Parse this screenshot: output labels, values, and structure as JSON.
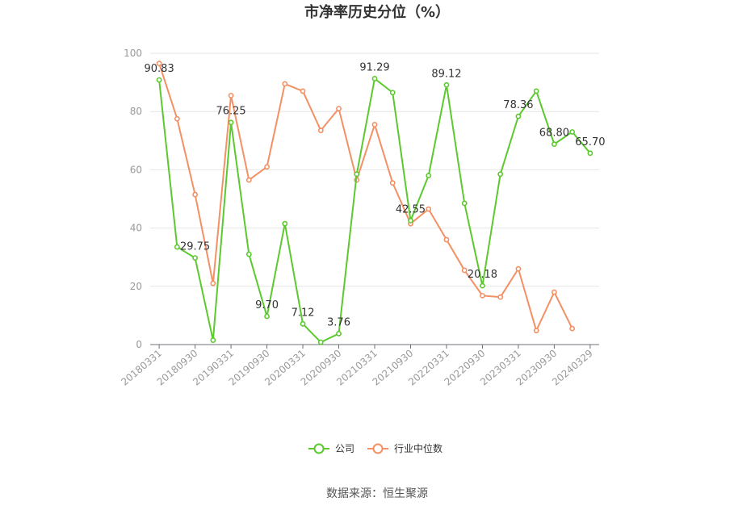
{
  "chart_data": {
    "type": "line",
    "title": "市净率历史分位（%）",
    "source": "数据来源：恒生聚源",
    "ylim": [
      0,
      100
    ],
    "yticks": [
      0,
      20,
      40,
      60,
      80,
      100
    ],
    "grid": true,
    "legend_position": "bottom-center",
    "x": [
      "20180331",
      "20180630",
      "20180930",
      "20181231",
      "20190331",
      "20190630",
      "20190930",
      "20191231",
      "20200331",
      "20200630",
      "20200930",
      "20201231",
      "20210331",
      "20210630",
      "20210930",
      "20211231",
      "20220331",
      "20220630",
      "20220930",
      "20221231",
      "20230331",
      "20230630",
      "20230930",
      "20231231",
      "20240329"
    ],
    "x_tick_labels": [
      "20180331",
      "20180930",
      "20190331",
      "20190930",
      "20200331",
      "20200930",
      "20210331",
      "20210930",
      "20220331",
      "20220930",
      "20230331",
      "20230930",
      "20240329"
    ],
    "series": [
      {
        "name": "公司",
        "color": "#5cc92e",
        "values": [
          90.83,
          33.5,
          29.75,
          1.5,
          76.25,
          31.0,
          9.7,
          41.5,
          7.12,
          0.8,
          3.76,
          58.5,
          91.29,
          86.5,
          42.55,
          58.0,
          89.12,
          48.5,
          20.18,
          58.5,
          78.36,
          87.0,
          68.8,
          73.0,
          65.7
        ],
        "labels": {
          "0": "90.83",
          "2": "29.75",
          "4": "76.25",
          "6": "9.70",
          "8": "7.12",
          "10": "3.76",
          "12": "91.29",
          "14": "42.55",
          "16": "89.12",
          "18": "20.18",
          "20": "78.36",
          "22": "68.80",
          "24": "65.70"
        }
      },
      {
        "name": "行业中位数",
        "color": "#f39064",
        "values": [
          96.5,
          77.5,
          51.5,
          21.0,
          85.5,
          56.5,
          61.0,
          89.5,
          87.0,
          73.5,
          81.0,
          56.5,
          75.5,
          55.5,
          41.5,
          46.5,
          36.0,
          25.5,
          16.8,
          16.3,
          26.0,
          4.8,
          18.0,
          5.5,
          null
        ]
      }
    ]
  }
}
